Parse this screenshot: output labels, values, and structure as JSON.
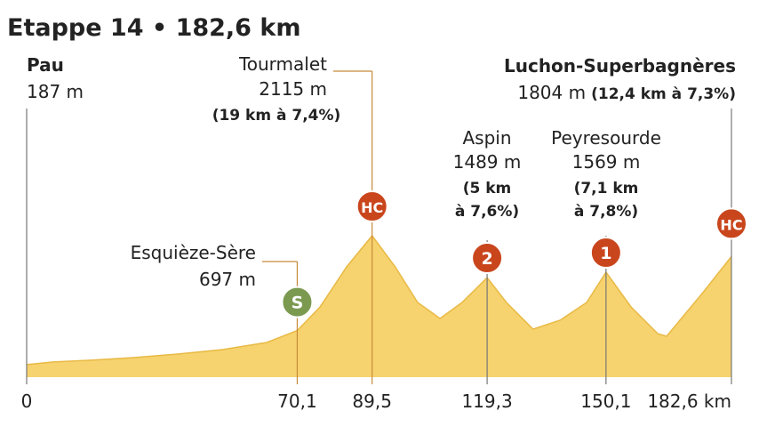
{
  "chart_data": {
    "type": "area",
    "title": "Etappe 14  • 182,6 km",
    "color": "#f6d36e",
    "line_color": "#e8b945",
    "xlim": [
      0,
      182.6
    ],
    "xticks": [
      0,
      {
        "value": 70.1,
        "label": "70,1"
      },
      {
        "value": 89.5,
        "label": "89,5"
      },
      {
        "value": 119.3,
        "label": "119,3"
      },
      {
        "value": 150.1,
        "label": "150,1"
      },
      {
        "value": 182.6,
        "label": "182,6 km"
      }
    ],
    "x": [
      0,
      6.9,
      16.1,
      27.6,
      39.1,
      50.7,
      62.2,
      70.1,
      76.0,
      82.9,
      89.5,
      95.5,
      101.3,
      107.1,
      112.8,
      119.3,
      124.3,
      131.2,
      138.2,
      145.1,
      150.1,
      156.6,
      163.5,
      165.8,
      175.0,
      182.6
    ],
    "values": [
      187,
      227,
      253,
      293,
      346,
      412,
      519,
      697,
      1050,
      1650,
      2115,
      1650,
      1117,
      878,
      1117,
      1489,
      1117,
      718,
      851,
      1117,
      1569,
      1050,
      651,
      612,
      1250,
      1804
    ],
    "places": [
      {
        "name": "Pau",
        "altitude": "187 m"
      },
      {
        "name": "Esquièze-Sère",
        "altitude": "697 m",
        "category": "S",
        "color": "#7b9a50"
      },
      {
        "name": "Tourmalet",
        "altitude": "2115 m",
        "climb": [
          "(19 km à 7,4%)"
        ],
        "category": "HC",
        "color": "#c9461d"
      },
      {
        "name": "Aspin",
        "altitude": "1489 m",
        "climb": [
          "(5 km",
          "à 7,6%)"
        ],
        "category": "2",
        "color": "#c9461d"
      },
      {
        "name": "Peyresourde",
        "altitude": "1569 m",
        "climb": [
          "(7,1 km",
          "à 7,8%)"
        ],
        "category": "1",
        "color": "#c9461d"
      },
      {
        "name": "Luchon-Superbagnères",
        "altitude": "1804 m",
        "climb": [
          "(12,4 km à 7,3%)"
        ],
        "category": "HC",
        "color": "#c9461d"
      }
    ]
  }
}
